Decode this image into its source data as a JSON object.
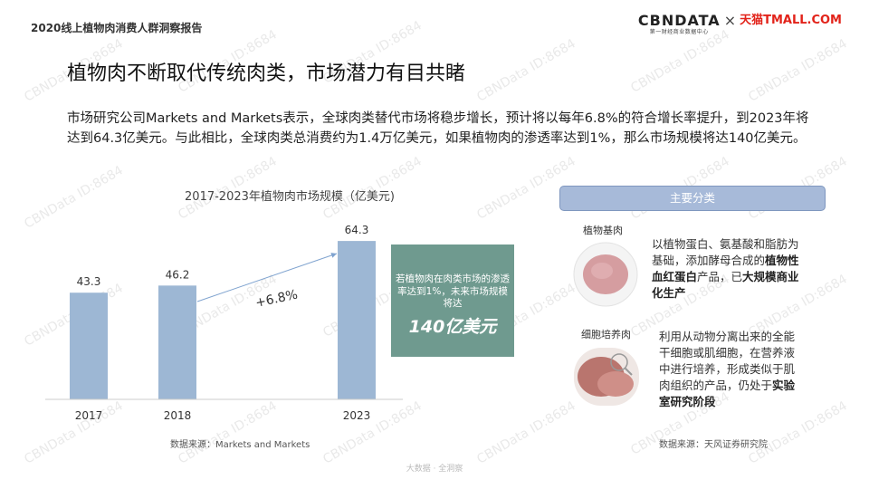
{
  "report_title": "2020线上植物肉消费人群洞察报告",
  "logo": {
    "brand": "CBNDATA",
    "sub": "第一财经商业数据中心",
    "cross": "×",
    "partner": "天猫TMALL.COM"
  },
  "headline": "植物肉不断取代传统肉类，市场潜力有目共睹",
  "intro": "市场研究公司Markets and Markets表示，全球肉类替代市场将稳步增长，预计将以每年6.8%的符合增长率提升，到2023年将达到64.3亿美元。与此相比，全球肉类总消费约为1.4万亿美元，如果植物肉的渗透率达到1%，那么市场规模将达140亿美元。",
  "chart_data": {
    "type": "bar",
    "title": "2017-2023年植物肉市场规模（亿美元)",
    "categories": [
      "2017",
      "2018",
      "2023"
    ],
    "values": [
      43.3,
      46.2,
      64.3
    ],
    "value_labels": [
      "43.3",
      "46.2",
      "64.3"
    ],
    "annotation": "+6.8%",
    "bar_color": "#9db7d4",
    "grid": false
  },
  "callout": {
    "text": "若植物肉在肉类市场的渗透率达到1%，未来市场规模将达",
    "value": "140亿美元",
    "color": "#6f9a8f"
  },
  "chart_source": "数据来源：Markets and Markets",
  "categories_panel": {
    "header": "主要分类",
    "items": [
      {
        "name": "植物基肉",
        "desc_pre": "以植物蛋白、氨基酸和脂肪为基础，添加酵母合成的",
        "desc_bold1": "植物性血红蛋白",
        "desc_mid": "产品，已",
        "desc_bold2": "大规模商业化生产",
        "desc_post": ""
      },
      {
        "name": "细胞培养肉",
        "desc_pre": "利用从动物分离出来的全能干细胞或肌细胞，在营养液中进行培养，形成类似于肌肉组织的产品，仍处于",
        "desc_bold1": "实验室研究阶段",
        "desc_mid": "",
        "desc_bold2": "",
        "desc_post": ""
      }
    ]
  },
  "right_source": "数据来源：天风证券研究院",
  "footer": "大数据 · 全洞察",
  "watermark": "CBNData ID:8684"
}
